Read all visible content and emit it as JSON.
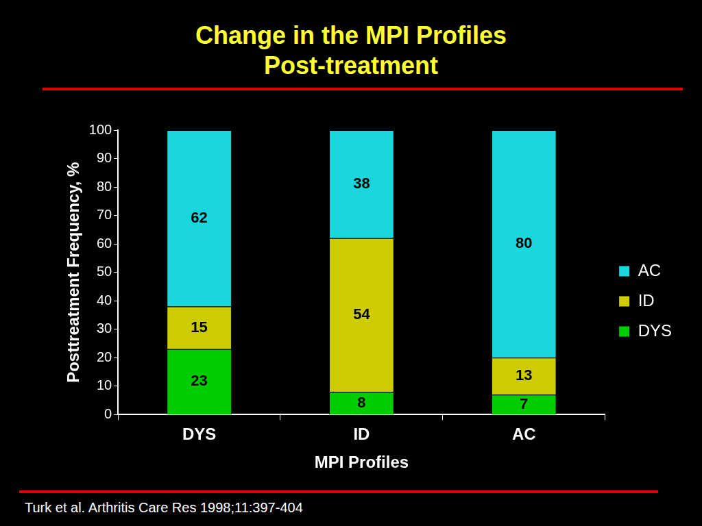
{
  "chart_data": {
    "type": "bar",
    "title": [
      "Change in the MPI Profiles",
      "Post-treatment"
    ],
    "x_label": "MPI Profiles",
    "y_label": "Posttreatment Frequency, %",
    "annotations": [
      "Turk et al. Arthritis Care Res 1998;11:397-404"
    ],
    "categories": [
      "DYS",
      "ID",
      "AC"
    ],
    "series": [
      {
        "name": "DYS",
        "color": "#00cc00",
        "values": [
          23,
          8,
          7
        ]
      },
      {
        "name": "ID",
        "color": "#cccc00",
        "values": [
          15,
          54,
          13
        ]
      },
      {
        "name": "AC",
        "color": "#19d7dc",
        "values": [
          62,
          38,
          80
        ]
      }
    ],
    "ylim": [
      0,
      100
    ],
    "yticks": [
      0,
      10,
      20,
      30,
      40,
      50,
      60,
      70,
      80,
      90,
      100
    ],
    "stacked": true,
    "data_labels": true,
    "legend": "right",
    "grid": false
  }
}
